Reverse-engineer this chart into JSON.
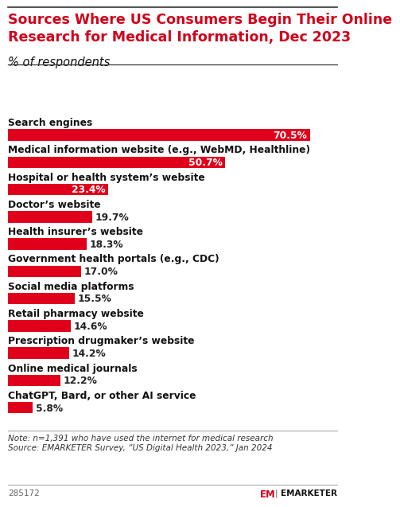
{
  "title": "Sources Where US Consumers Begin Their Online\nResearch for Medical Information, Dec 2023",
  "subtitle": "% of respondents",
  "categories": [
    "Search engines",
    "Medical information website (e.g., WebMD, Healthline)",
    "Hospital or health system’s website",
    "Doctor’s website",
    "Health insurer’s website",
    "Government health portals (e.g., CDC)",
    "Social media platforms",
    "Retail pharmacy website",
    "Prescription drugmaker’s website",
    "Online medical journals",
    "ChatGPT, Bard, or other AI service"
  ],
  "values": [
    70.5,
    50.7,
    23.4,
    19.7,
    18.3,
    17.0,
    15.5,
    14.6,
    14.2,
    12.2,
    5.8
  ],
  "bar_color": "#E0001B",
  "bg_color": "#ffffff",
  "title_color": "#D0021B",
  "note_text": "Note: n=1,391 who have used the internet for medical research\nSource: EMARKETER Survey, “US Digital Health 2023,” Jan 2024",
  "footer_id": "285172",
  "xlim_max": 75,
  "title_fontsize": 12.5,
  "subtitle_fontsize": 10.5,
  "category_fontsize": 8.8,
  "value_fontsize": 8.8,
  "note_fontsize": 7.5
}
